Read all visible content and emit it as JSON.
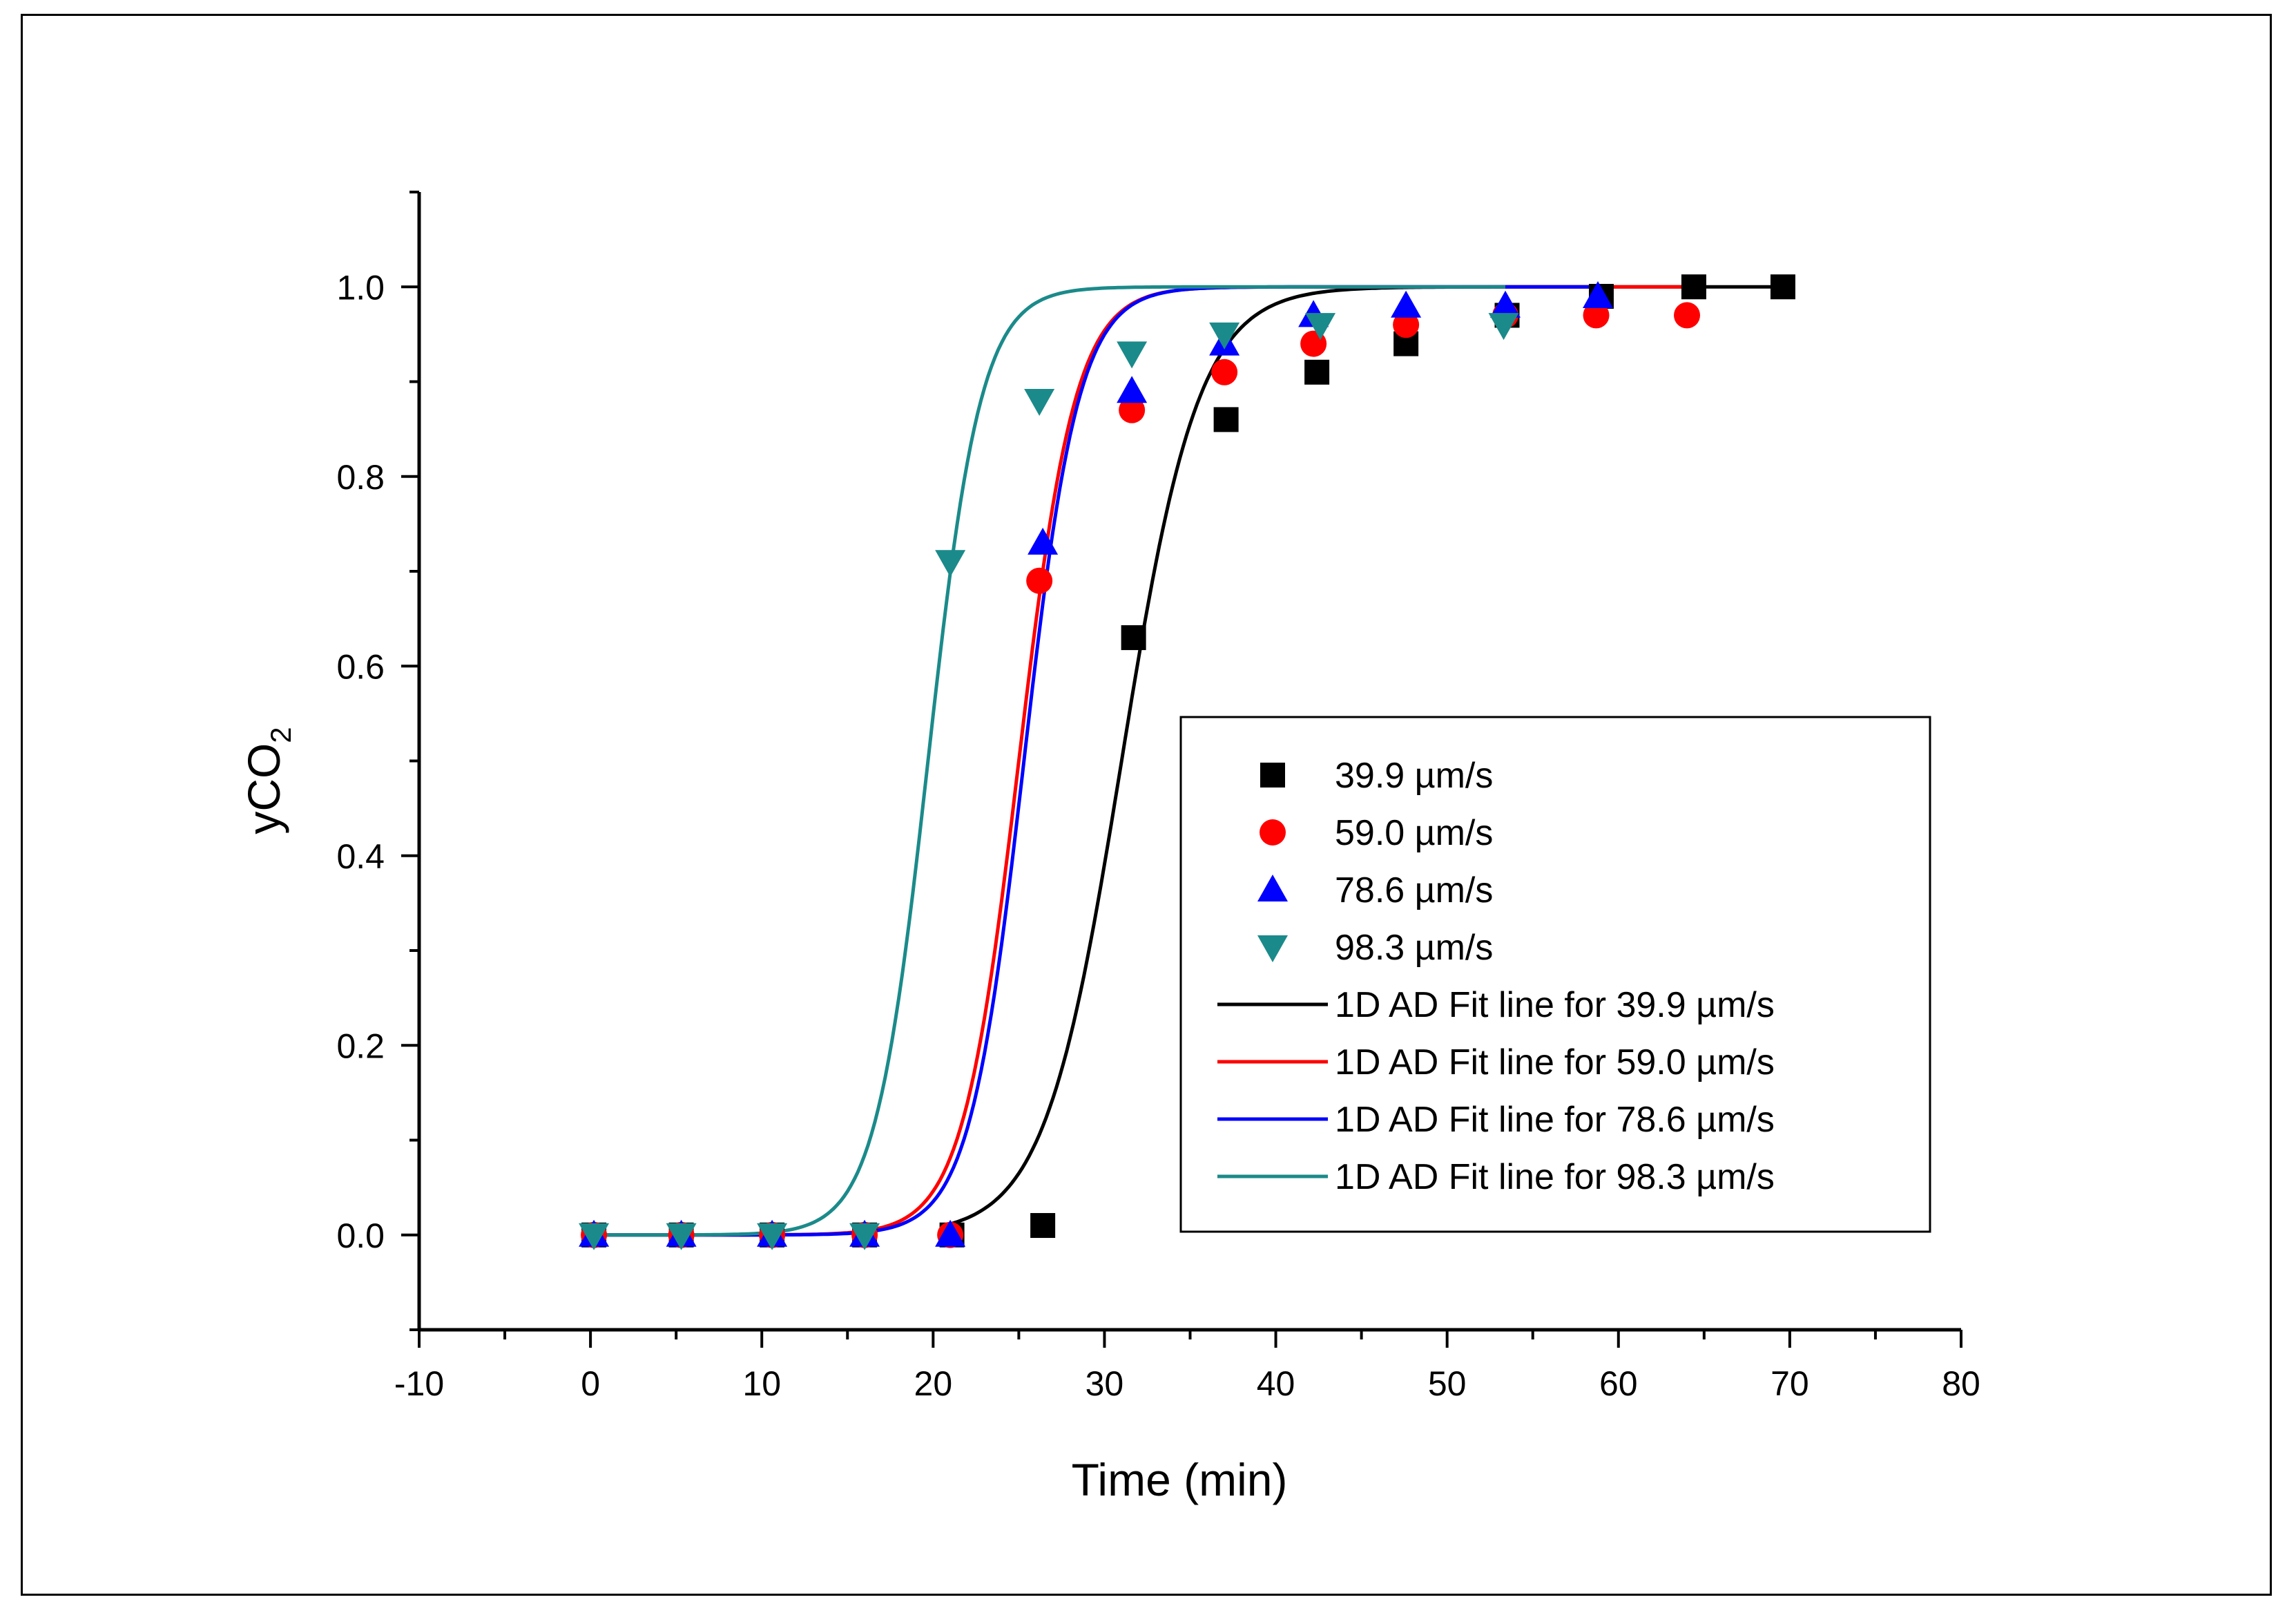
{
  "chart_data": {
    "type": "scatter",
    "title": "",
    "xlabel": "Time (min)",
    "ylabel_main": "yCO",
    "ylabel_sub": "2",
    "xlim": [
      -10,
      80
    ],
    "ylim": [
      -0.1,
      1.1
    ],
    "xticks": [
      -10,
      0,
      10,
      20,
      30,
      40,
      50,
      60,
      70,
      80
    ],
    "xtick_labels": [
      "-10",
      "0",
      "10",
      "20",
      "30",
      "40",
      "50",
      "60",
      "70",
      "80"
    ],
    "yticks": [
      0.0,
      0.2,
      0.4,
      0.6,
      0.8,
      1.0
    ],
    "ytick_labels": [
      "0.0",
      "0.2",
      "0.4",
      "0.6",
      "0.8",
      "1.0"
    ],
    "legend_position": "center-right",
    "series": [
      {
        "name": "39.9 µm/s",
        "marker": "square",
        "color": "#000000",
        "x": [
          0.2,
          5.3,
          10.6,
          16.0,
          21.1,
          26.4,
          31.7,
          37.1,
          42.4,
          47.6,
          53.5,
          59.0,
          64.4,
          69.6
        ],
        "y": [
          0.0,
          0.0,
          0.0,
          0.0,
          0.0,
          0.01,
          0.63,
          0.86,
          0.91,
          0.94,
          0.97,
          0.99,
          1.0,
          1.0
        ]
      },
      {
        "name": "59.0 µm/s",
        "marker": "circle",
        "color": "#ff0000",
        "x": [
          0.2,
          5.3,
          10.6,
          16.0,
          21.0,
          26.2,
          31.6,
          37.0,
          42.2,
          47.6,
          53.4,
          58.7,
          64.0
        ],
        "y": [
          0.0,
          0.0,
          0.0,
          0.0,
          0.0,
          0.69,
          0.87,
          0.91,
          0.94,
          0.96,
          0.97,
          0.97,
          0.97
        ]
      },
      {
        "name": "78.6 µm/s",
        "marker": "triangle-up",
        "color": "#0000ff",
        "x": [
          0.2,
          5.3,
          10.6,
          16.0,
          21.0,
          26.4,
          31.6,
          37.0,
          42.2,
          47.6,
          53.4,
          58.8
        ],
        "y": [
          0.0,
          0.0,
          0.0,
          0.0,
          0.0,
          0.73,
          0.89,
          0.94,
          0.97,
          0.98,
          0.98,
          0.99
        ]
      },
      {
        "name": "98.3 µm/s",
        "marker": "triangle-down",
        "color": "#1b8a8a",
        "x": [
          0.2,
          5.3,
          10.6,
          16.0,
          21.0,
          26.2,
          31.6,
          37.0,
          42.6,
          53.3
        ],
        "y": [
          0.0,
          0.0,
          0.0,
          0.0,
          0.71,
          0.88,
          0.93,
          0.95,
          0.96,
          0.96
        ]
      }
    ],
    "fit_lines": [
      {
        "name": "1D AD Fit line for 39.9 µm/s",
        "color": "#000000",
        "midpoint": 31.0,
        "width": 2.25,
        "x_start": 21.0,
        "x_end": 69.6
      },
      {
        "name": "1D AD Fit line for 59.0 µm/s",
        "color": "#ff0000",
        "midpoint": 25.0,
        "width": 1.65,
        "x_start": 0.0,
        "x_end": 65.0
      },
      {
        "name": "1D AD Fit line for 78.6 µm/s",
        "color": "#0000ff",
        "midpoint": 25.3,
        "width": 1.6,
        "x_start": 0.0,
        "x_end": 59.0
      },
      {
        "name": "1D AD Fit line for 98.3 µm/s",
        "color": "#1b8a8a",
        "midpoint": 19.7,
        "width": 1.55,
        "x_start": 0.0,
        "x_end": 53.5
      }
    ]
  }
}
